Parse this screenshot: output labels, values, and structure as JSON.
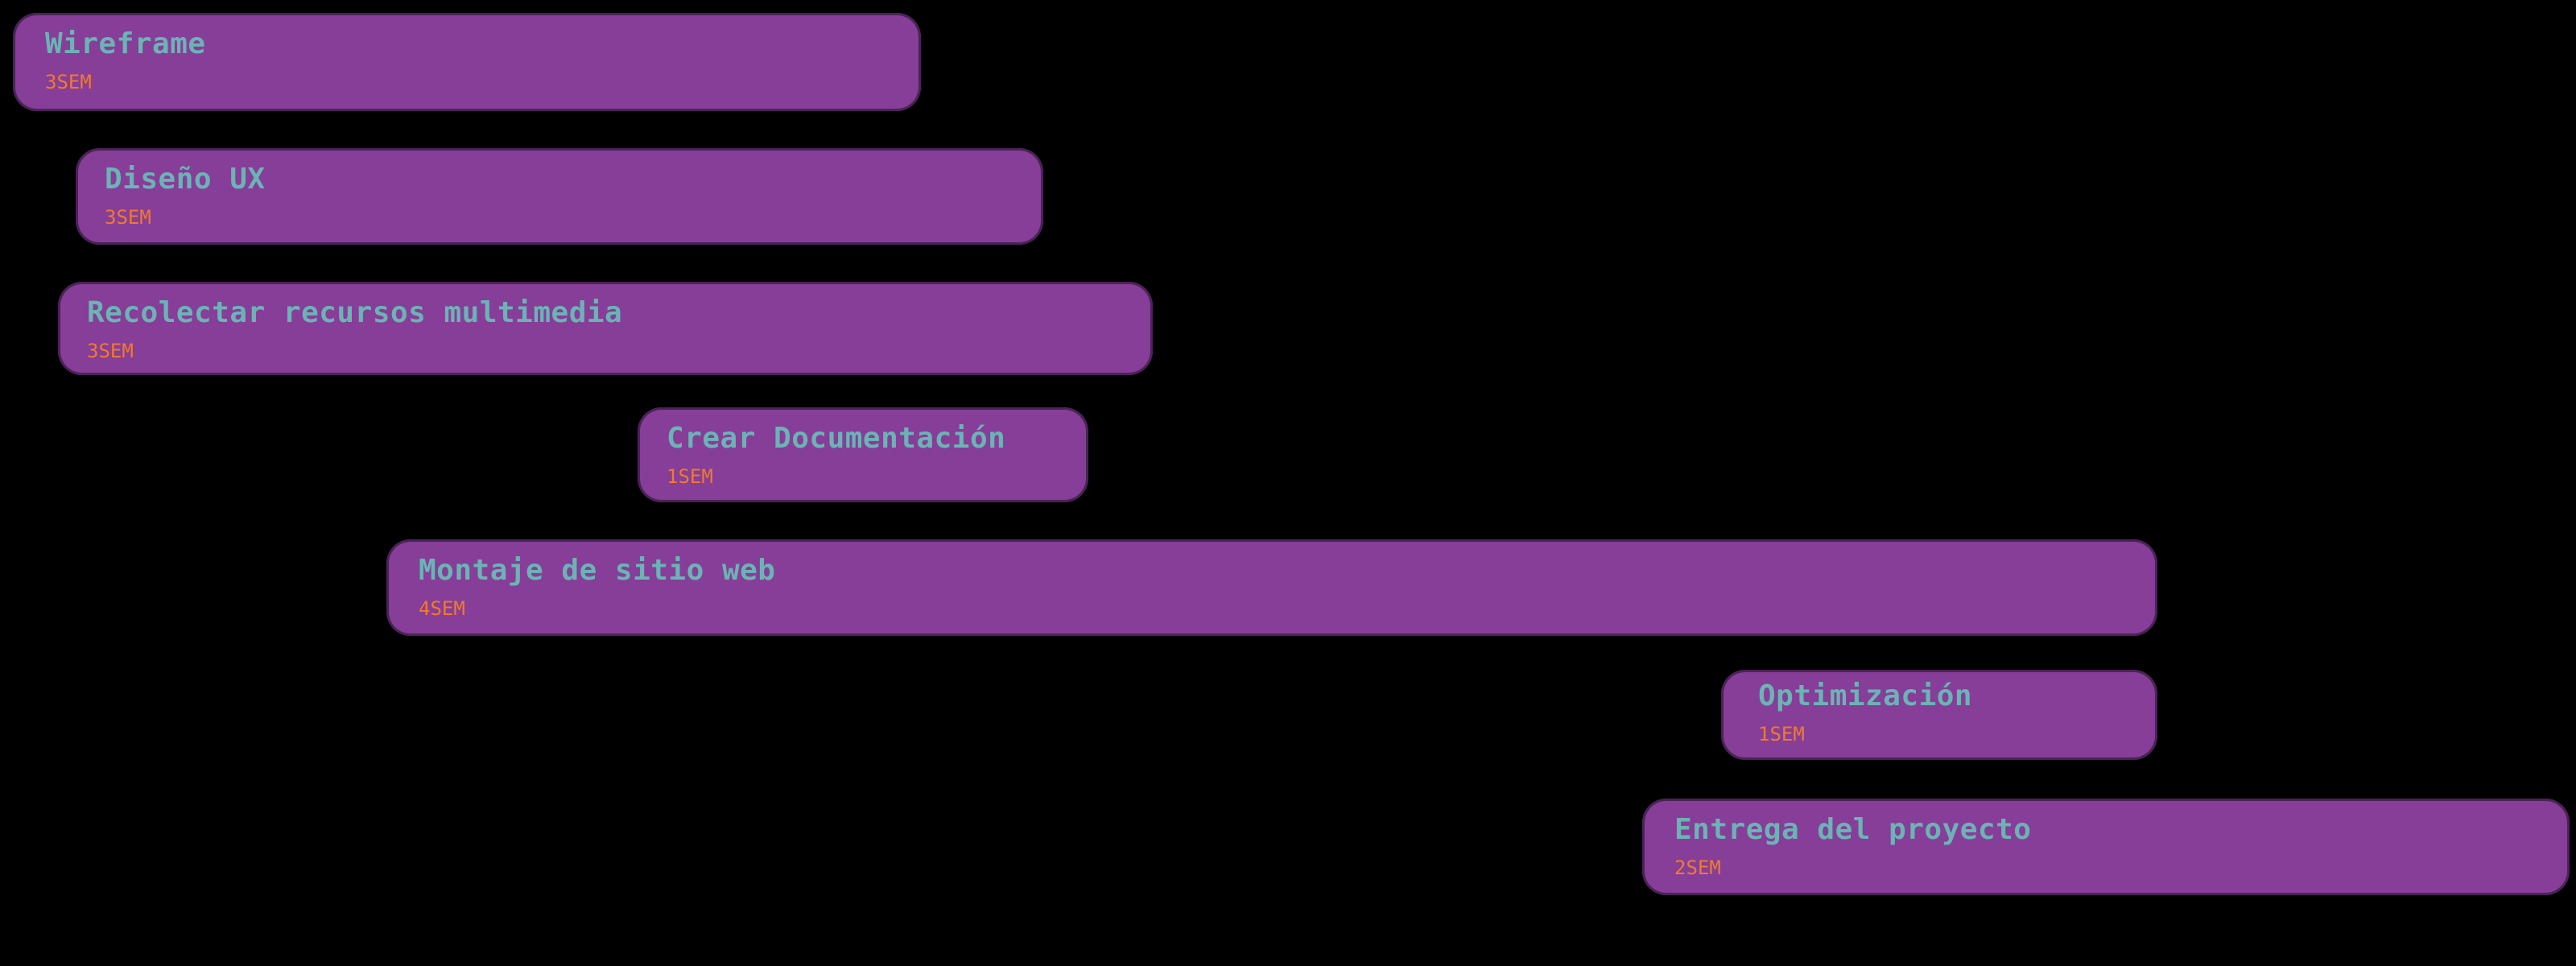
{
  "colors": {
    "background": "#000000",
    "bar": "#863e98",
    "title_text": "#6cb3b6",
    "duration_text": "#f07a2c"
  },
  "tasks": [
    {
      "title": "Wireframe",
      "duration": "3SEM"
    },
    {
      "title": "Diseño UX",
      "duration": "3SEM"
    },
    {
      "title": "Recolectar recursos multimedia",
      "duration": "3SEM"
    },
    {
      "title": "Crear Documentación",
      "duration": "1SEM"
    },
    {
      "title": "Montaje de sitio web",
      "duration": "4SEM"
    },
    {
      "title": "Optimización",
      "duration": "1SEM"
    },
    {
      "title": "Entrega del proyecto",
      "duration": "2SEM"
    }
  ]
}
